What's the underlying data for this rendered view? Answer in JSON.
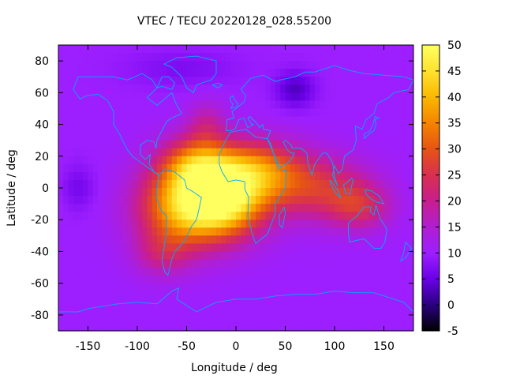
{
  "chart_data": {
    "type": "heatmap",
    "title": "VTEC / TECU 20220128_028.55200",
    "xlabel": "Longitude / deg",
    "ylabel": "Latitude / deg",
    "xlim": [
      -180,
      180
    ],
    "ylim": [
      -90,
      90
    ],
    "x_ticks": [
      -150,
      -100,
      -50,
      0,
      50,
      100,
      150
    ],
    "y_ticks": [
      -80,
      -60,
      -40,
      -20,
      0,
      20,
      40,
      60,
      80
    ],
    "colorbar": {
      "min": -5,
      "max": 50,
      "ticks": [
        -5,
        0,
        5,
        10,
        15,
        20,
        25,
        30,
        35,
        40,
        45,
        50
      ],
      "palette": [
        "#000000",
        "#2a0080",
        "#6a00e8",
        "#9d1fff",
        "#b01fd0",
        "#c81e8e",
        "#d83050",
        "#e65414",
        "#f58400",
        "#fbb800",
        "#ffe230",
        "#ffff60"
      ]
    },
    "peak": {
      "lon": -10,
      "lat": -8,
      "value": 45
    },
    "background_level": 10,
    "coastlines": "world",
    "grid": false,
    "colors": {
      "coastline": "#00aaff",
      "frame": "#000000"
    }
  }
}
